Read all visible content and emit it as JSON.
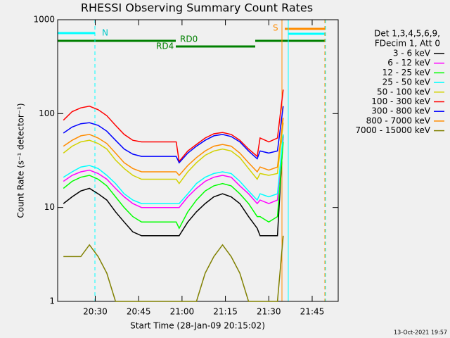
{
  "chart_data": {
    "type": "line",
    "title": "RHESSI Observing Summary Count Rates",
    "x_label": "Start Time (28-Jan-09 20:15:02)",
    "y_label": "Count Rate (s⁻¹ detector⁻¹)",
    "log_y": true,
    "xlim": [
      17,
      114
    ],
    "ylim": [
      1,
      1000
    ],
    "xticks": [
      {
        "value": 30,
        "label": "20:30"
      },
      {
        "value": 45,
        "label": "20:45"
      },
      {
        "value": 60,
        "label": "21:00"
      },
      {
        "value": 75,
        "label": "21:15"
      },
      {
        "value": 90,
        "label": "21:30"
      },
      {
        "value": 105,
        "label": "21:45"
      }
    ],
    "yticks": [
      1,
      10,
      100,
      1000
    ],
    "legend_header": [
      "Det 1,3,4,5,6,9,",
      "FDecim 1, Att 0"
    ],
    "legend_position": "right",
    "annotations": [
      "N",
      "RD0",
      "RD4",
      "S"
    ],
    "footer": "13-Oct-2021 19:57",
    "x": [
      19,
      22,
      25,
      28,
      31,
      34,
      37,
      40,
      43,
      46,
      49,
      52,
      55,
      58,
      59,
      62,
      65,
      68,
      71,
      74,
      77,
      80,
      83,
      86,
      87,
      90,
      93,
      95
    ],
    "series": [
      {
        "name": "3 - 6 keV",
        "color": "#000000",
        "values": [
          11,
          13,
          15,
          16,
          14,
          12,
          9,
          7,
          5.5,
          5,
          5,
          5,
          5,
          5,
          5,
          7,
          9,
          11,
          13,
          14,
          13,
          11,
          8,
          6,
          5,
          5,
          5,
          60
        ]
      },
      {
        "name": "6 - 12 keV",
        "color": "#ff00ff",
        "values": [
          19,
          22,
          24,
          25,
          23,
          20,
          16,
          13,
          11,
          10,
          10,
          10,
          10,
          10,
          10,
          13,
          16,
          19,
          21,
          22,
          21,
          17,
          14,
          11,
          12,
          11,
          12,
          55
        ]
      },
      {
        "name": "12 - 25 keV",
        "color": "#00ff00",
        "values": [
          16,
          19,
          21,
          22,
          20,
          17,
          13,
          10,
          8,
          7,
          7,
          7,
          7,
          7,
          6,
          9,
          12,
          15,
          17,
          18,
          17,
          14,
          11,
          8,
          8,
          7,
          8,
          50
        ]
      },
      {
        "name": "25 - 50 keV",
        "color": "#00ffff",
        "values": [
          21,
          24,
          27,
          28,
          26,
          22,
          18,
          14,
          12,
          11,
          11,
          11,
          11,
          11,
          11,
          14,
          18,
          21,
          23,
          24,
          23,
          19,
          15,
          12,
          14,
          13,
          14,
          60
        ]
      },
      {
        "name": "50 - 100 keV",
        "color": "#d2d200",
        "values": [
          38,
          45,
          50,
          52,
          48,
          42,
          32,
          26,
          22,
          20,
          20,
          20,
          20,
          20,
          18,
          24,
          30,
          36,
          40,
          42,
          40,
          34,
          26,
          20,
          23,
          22,
          23,
          80
        ]
      },
      {
        "name": "100 - 300 keV",
        "color": "#ff0000",
        "values": [
          85,
          105,
          115,
          120,
          110,
          95,
          75,
          60,
          52,
          50,
          50,
          50,
          50,
          50,
          31,
          40,
          47,
          55,
          61,
          63,
          60,
          52,
          42,
          35,
          55,
          50,
          55,
          180
        ]
      },
      {
        "name": "300 - 800 keV",
        "color": "#0000ff",
        "values": [
          62,
          72,
          78,
          80,
          75,
          65,
          52,
          42,
          37,
          35,
          35,
          35,
          35,
          35,
          30,
          38,
          45,
          52,
          58,
          60,
          57,
          50,
          40,
          33,
          40,
          38,
          40,
          120
        ]
      },
      {
        "name": "800 - 7000 keV",
        "color": "#ff8c00",
        "values": [
          45,
          52,
          58,
          60,
          55,
          48,
          38,
          30,
          26,
          24,
          24,
          24,
          24,
          24,
          22,
          28,
          34,
          40,
          45,
          47,
          45,
          38,
          30,
          24,
          27,
          25,
          27,
          90
        ]
      },
      {
        "name": "7000 - 15000 keV",
        "color": "#808000",
        "values": [
          3,
          3,
          3,
          4,
          3,
          2,
          1,
          1,
          1,
          1,
          1,
          1,
          1,
          1,
          1,
          1,
          1,
          2,
          3,
          4,
          3,
          2,
          1,
          1,
          1,
          1,
          1,
          5
        ]
      }
    ]
  }
}
